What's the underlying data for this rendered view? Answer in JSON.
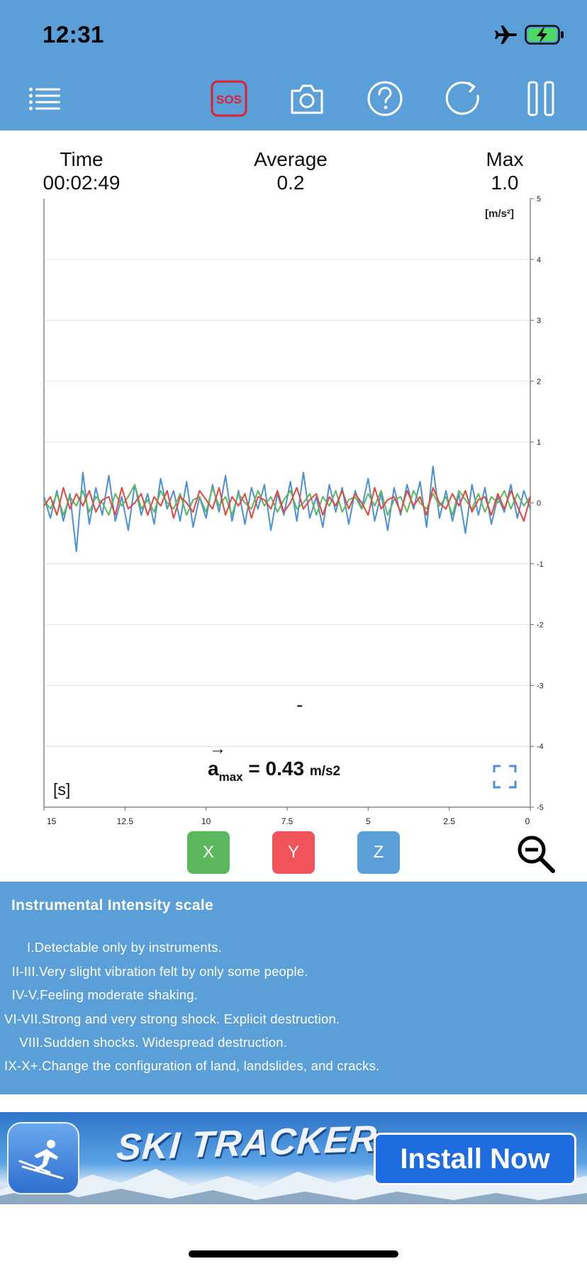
{
  "status_bar": {
    "time": "12:31",
    "airplane_icon": "airplane-icon",
    "battery_icon": "battery-charging-icon",
    "battery_color": "#4cd964"
  },
  "toolbar": {
    "menu_icon": "menu-list-icon",
    "sos_label": "SOS",
    "camera_icon": "camera-icon",
    "help_icon": "question-icon",
    "refresh_icon": "refresh-icon",
    "pause_icon": "pause-icon",
    "background_color": "#5a9fd8",
    "sos_color": "#e02030"
  },
  "stats": {
    "time_label": "Time",
    "time_value": "00:02:49",
    "average_label": "Average",
    "average_value": "0.2",
    "max_label": "Max",
    "max_value": "1.0"
  },
  "chart_data": {
    "type": "line",
    "unit_label": "[m/s²]",
    "x_axis_label": "[s]",
    "x_ticks": [
      "15",
      "12.5",
      "10",
      "7.5",
      "5",
      "2.5",
      "0"
    ],
    "x_range": [
      15,
      0
    ],
    "y_ticks": [
      "5",
      "4",
      "3",
      "2",
      "1",
      "0",
      "-1",
      "-2",
      "-3",
      "-4",
      "-5"
    ],
    "y_range": [
      -5,
      5
    ],
    "grid": true,
    "series": [
      {
        "axis": "X",
        "color": "#5cb85c",
        "x": [
          15.0,
          14.8,
          14.6,
          14.4,
          14.2,
          14.0,
          13.8,
          13.6,
          13.4,
          13.2,
          13.0,
          12.8,
          12.6,
          12.4,
          12.2,
          12.0,
          11.8,
          11.6,
          11.4,
          11.2,
          11.0,
          10.8,
          10.6,
          10.4,
          10.2,
          10.0,
          9.8,
          9.6,
          9.4,
          9.2,
          9.0,
          8.8,
          8.6,
          8.4,
          8.2,
          8.0,
          7.8,
          7.6,
          7.4,
          7.2,
          7.0,
          6.8,
          6.6,
          6.4,
          6.2,
          6.0,
          5.8,
          5.6,
          5.4,
          5.2,
          5.0,
          4.8,
          4.6,
          4.4,
          4.2,
          4.0,
          3.8,
          3.6,
          3.4,
          3.2,
          3.0,
          2.8,
          2.6,
          2.4,
          2.2,
          2.0,
          1.8,
          1.6,
          1.4,
          1.2,
          1.0,
          0.8,
          0.6,
          0.4,
          0.2,
          0.0
        ],
        "values": [
          0.05,
          -0.1,
          0.15,
          -0.2,
          0.1,
          -0.05,
          0.2,
          -0.15,
          0.1,
          0.0,
          -0.2,
          0.15,
          -0.05,
          0.1,
          0.3,
          -0.1,
          0.05,
          -0.15,
          0.2,
          0.0,
          -0.1,
          0.15,
          -0.2,
          0.05,
          0.1,
          -0.15,
          0.25,
          -0.05,
          0.1,
          -0.2,
          0.15,
          0.0,
          -0.1,
          0.2,
          -0.05,
          0.1,
          -0.15,
          0.05,
          0.2,
          -0.1,
          0.0,
          0.15,
          -0.2,
          0.1,
          -0.05,
          0.2,
          -0.15,
          0.05,
          0.1,
          -0.1,
          0.15,
          -0.05,
          0.2,
          -0.2,
          0.05,
          0.1,
          -0.15,
          0.2,
          0.0,
          -0.1,
          0.15,
          -0.05,
          0.1,
          -0.2,
          0.2,
          0.05,
          -0.1,
          0.15,
          -0.15,
          0.1,
          0.0,
          0.2,
          -0.1,
          0.15,
          -0.05,
          0.1
        ]
      },
      {
        "axis": "Y",
        "color": "#e8453c",
        "x": [
          15.0,
          14.8,
          14.6,
          14.4,
          14.2,
          14.0,
          13.8,
          13.6,
          13.4,
          13.2,
          13.0,
          12.8,
          12.6,
          12.4,
          12.2,
          12.0,
          11.8,
          11.6,
          11.4,
          11.2,
          11.0,
          10.8,
          10.6,
          10.4,
          10.2,
          10.0,
          9.8,
          9.6,
          9.4,
          9.2,
          9.0,
          8.8,
          8.6,
          8.4,
          8.2,
          8.0,
          7.8,
          7.6,
          7.4,
          7.2,
          7.0,
          6.8,
          6.6,
          6.4,
          6.2,
          6.0,
          5.8,
          5.6,
          5.4,
          5.2,
          5.0,
          4.8,
          4.6,
          4.4,
          4.2,
          4.0,
          3.8,
          3.6,
          3.4,
          3.2,
          3.0,
          2.8,
          2.6,
          2.4,
          2.2,
          2.0,
          1.8,
          1.6,
          1.4,
          1.2,
          1.0,
          0.8,
          0.6,
          0.4,
          0.2,
          0.0
        ],
        "values": [
          -0.05,
          0.1,
          -0.2,
          0.25,
          -0.1,
          0.15,
          -0.05,
          0.2,
          -0.15,
          0.05,
          0.1,
          -0.2,
          0.25,
          -0.1,
          0.0,
          0.15,
          -0.2,
          0.1,
          -0.05,
          0.2,
          -0.25,
          0.1,
          0.0,
          -0.15,
          0.2,
          0.05,
          -0.1,
          0.25,
          -0.2,
          0.1,
          -0.05,
          0.15,
          -0.25,
          0.1,
          0.05,
          -0.1,
          0.2,
          -0.15,
          0.0,
          0.25,
          -0.1,
          0.05,
          0.15,
          -0.2,
          0.1,
          -0.05,
          0.2,
          -0.1,
          0.15,
          0.0,
          -0.2,
          0.25,
          -0.1,
          0.05,
          0.1,
          -0.15,
          0.2,
          -0.05,
          0.1,
          -0.2,
          0.25,
          0.0,
          -0.1,
          0.15,
          -0.05,
          0.2,
          -0.15,
          0.05,
          0.1,
          -0.2,
          0.15,
          -0.1,
          0.2,
          -0.05,
          -0.3,
          0.1
        ]
      },
      {
        "axis": "Z",
        "color": "#4a90d9",
        "x": [
          15.0,
          14.8,
          14.6,
          14.4,
          14.2,
          14.0,
          13.8,
          13.6,
          13.4,
          13.2,
          13.0,
          12.8,
          12.6,
          12.4,
          12.2,
          12.0,
          11.8,
          11.6,
          11.4,
          11.2,
          11.0,
          10.8,
          10.6,
          10.4,
          10.2,
          10.0,
          9.8,
          9.6,
          9.4,
          9.2,
          9.0,
          8.8,
          8.6,
          8.4,
          8.2,
          8.0,
          7.8,
          7.6,
          7.4,
          7.2,
          7.0,
          6.8,
          6.6,
          6.4,
          6.2,
          6.0,
          5.8,
          5.6,
          5.4,
          5.2,
          5.0,
          4.8,
          4.6,
          4.4,
          4.2,
          4.0,
          3.8,
          3.6,
          3.4,
          3.2,
          3.0,
          2.8,
          2.6,
          2.4,
          2.2,
          2.0,
          1.8,
          1.6,
          1.4,
          1.2,
          1.0,
          0.8,
          0.6,
          0.4,
          0.2,
          0.0
        ],
        "values": [
          0.1,
          -0.25,
          0.2,
          -0.3,
          0.15,
          -0.8,
          0.5,
          -0.35,
          0.25,
          -0.2,
          0.45,
          -0.3,
          0.1,
          -0.45,
          0.3,
          -0.2,
          0.15,
          -0.35,
          0.4,
          -0.1,
          0.2,
          -0.3,
          0.35,
          -0.4,
          0.1,
          -0.25,
          0.3,
          -0.15,
          0.45,
          -0.3,
          0.2,
          -0.35,
          0.25,
          -0.1,
          0.3,
          -0.45,
          0.15,
          -0.2,
          0.35,
          -0.3,
          0.5,
          -0.25,
          0.1,
          -0.4,
          0.3,
          -0.15,
          0.25,
          -0.35,
          0.2,
          -0.1,
          0.4,
          -0.3,
          0.15,
          -0.45,
          0.25,
          -0.2,
          0.3,
          -0.1,
          0.35,
          -0.4,
          0.6,
          -0.25,
          0.2,
          -0.3,
          0.15,
          -0.5,
          0.3,
          -0.2,
          0.25,
          -0.35,
          0.1,
          -0.15,
          0.3,
          -0.25,
          0.2,
          -0.1
        ]
      }
    ],
    "amax_symbol": "a",
    "amax_subscript": "max",
    "amax_value": "= 0.43",
    "amax_unit": "m/s2",
    "center_marker": "-",
    "fullscreen_icon": "fullscreen-icon"
  },
  "axis_buttons": [
    {
      "label": "X",
      "color": "#5cb85c"
    },
    {
      "label": "Y",
      "color": "#f0545a"
    },
    {
      "label": "Z",
      "color": "#5a9fd8"
    }
  ],
  "zoom_out_icon": "zoom-out-icon",
  "intensity_scale": {
    "title": "Instrumental Intensity scale",
    "lines": [
      "      I.Detectable only by instruments.",
      "  II-III.Very slight vibration felt by only some people.",
      "  IV-V.Feeling moderate shaking.",
      "VI-VII.Strong and very strong shock. Explicit destruction.",
      "    VIII.Sudden shocks. Widespread destruction.",
      "IX-X+.Change the configuration of land, landslides, and cracks."
    ]
  },
  "ad_banner": {
    "icon": "skier-icon",
    "title": "SKI TRACKER",
    "button_label": "Install Now"
  }
}
